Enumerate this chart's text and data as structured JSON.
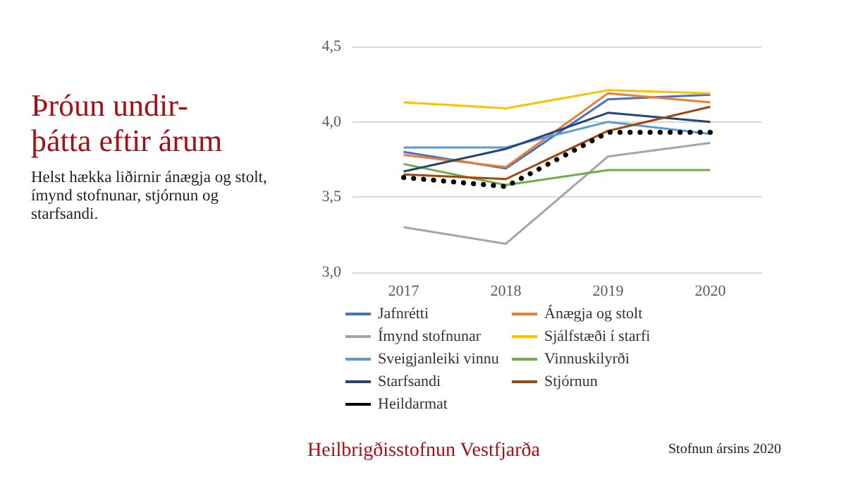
{
  "chart_data": {
    "type": "line",
    "title": "Þróun undir-\nþátta eftir árum",
    "subtitle": "Helst hækka liðirnir ánægja og stolt, ímynd stofnunar, stjórnun og starfsandi.",
    "annotations": [
      "Heilbrigðisstofnun Vestfjarða",
      "Stofnun ársins 2020"
    ],
    "categories": [
      "2017",
      "2018",
      "2019",
      "2020"
    ],
    "series": [
      {
        "name": "Jafnrétti",
        "color": "#4472c4",
        "values": [
          3.8,
          3.69,
          4.15,
          4.18
        ]
      },
      {
        "name": "Ánægja og stolt",
        "color": "#ed7d31",
        "values": [
          3.78,
          3.7,
          4.19,
          4.13
        ]
      },
      {
        "name": "Ímynd stofnunar",
        "color": "#a5a5a5",
        "values": [
          3.3,
          3.19,
          3.77,
          3.86
        ]
      },
      {
        "name": "Sjálfstæði í starfi",
        "color": "#ffc000",
        "values": [
          4.13,
          4.09,
          4.21,
          4.19
        ]
      },
      {
        "name": "Sveigjanleiki vinnu",
        "color": "#5b9bd5",
        "values": [
          3.83,
          3.83,
          4.0,
          3.92
        ]
      },
      {
        "name": "Vinnuskilyrði",
        "color": "#70ad47",
        "values": [
          3.72,
          3.58,
          3.68,
          3.68
        ]
      },
      {
        "name": "Starfsandi",
        "color": "#264478",
        "values": [
          3.67,
          3.82,
          4.06,
          4.0
        ]
      },
      {
        "name": "Stjórnun",
        "color": "#9e480e",
        "values": [
          3.65,
          3.62,
          3.94,
          4.1
        ]
      },
      {
        "name": "Heildarmat",
        "color": "#000000",
        "values": [
          3.63,
          3.57,
          3.93,
          3.93
        ],
        "line_style": "dotted"
      }
    ],
    "ylim": [
      3.0,
      4.5
    ],
    "yticks": [
      {
        "value": 3.0,
        "label": "3,0"
      },
      {
        "value": 3.5,
        "label": "3,5"
      },
      {
        "value": 4.0,
        "label": "4,0"
      },
      {
        "value": 4.5,
        "label": "4,5"
      }
    ],
    "grid": "y",
    "legend": "bottom",
    "marker": "none",
    "line_style": "solid"
  }
}
